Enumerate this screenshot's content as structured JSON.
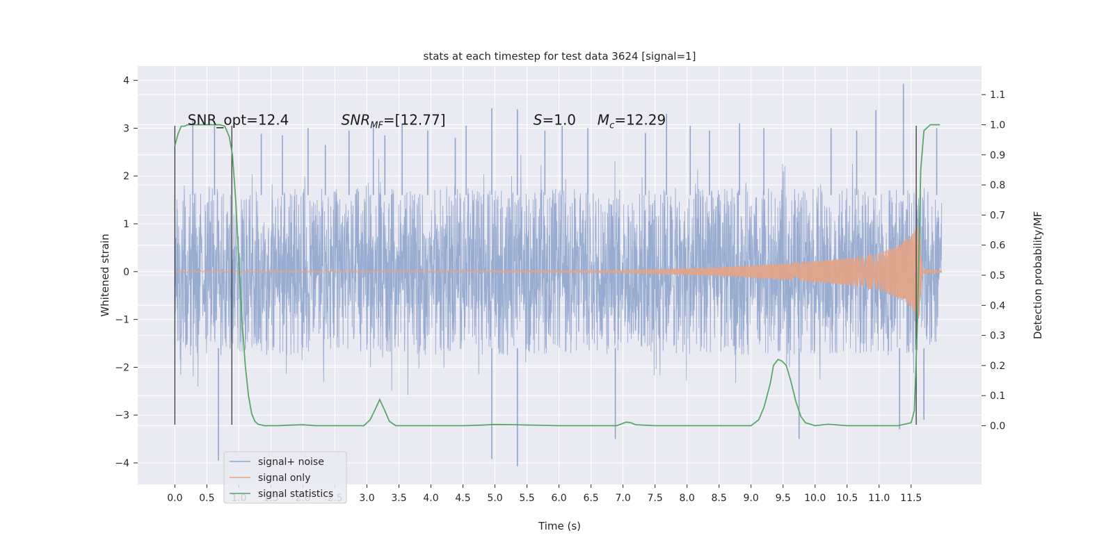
{
  "chart_data": {
    "type": "line",
    "title": "stats at each timestep for test data 3624 [signal=1]",
    "xlabel": "Time (s)",
    "ylabel_left": "Whitened strain",
    "ylabel_right": "Detection probability/MF",
    "xlim": [
      -0.58,
      12.6
    ],
    "ylim_left": [
      -4.45,
      4.3
    ],
    "ylim_right": [
      -0.195,
      1.195
    ],
    "x_ticks": [
      0.0,
      0.5,
      1.0,
      1.5,
      2.0,
      2.5,
      3.0,
      3.5,
      4.0,
      4.5,
      5.0,
      5.5,
      6.0,
      6.5,
      7.0,
      7.5,
      8.0,
      8.5,
      9.0,
      9.5,
      10.0,
      10.5,
      11.0,
      11.5
    ],
    "x_tick_labels": [
      "0.0",
      "0.5",
      "1.0",
      "1.5",
      "2.0",
      "2.5",
      "3.0",
      "3.5",
      "4.0",
      "4.5",
      "5.0",
      "5.5",
      "6.0",
      "6.5",
      "7.0",
      "7.5",
      "8.0",
      "8.5",
      "9.0",
      "9.5",
      "10.0",
      "10.5",
      "11.0",
      "11.5"
    ],
    "y_left_ticks": [
      -4,
      -3,
      -2,
      -1,
      0,
      1,
      2,
      3,
      4
    ],
    "y_left_tick_labels": [
      "−4",
      "−3",
      "−2",
      "−1",
      "0",
      "1",
      "2",
      "3",
      "4"
    ],
    "y_right_ticks": [
      0.0,
      0.1,
      0.2,
      0.3,
      0.4,
      0.5,
      0.6,
      0.7,
      0.8,
      0.9,
      1.0,
      1.1
    ],
    "y_right_tick_labels": [
      "0.0",
      "0.1",
      "0.2",
      "0.3",
      "0.4",
      "0.5",
      "0.6",
      "0.7",
      "0.8",
      "0.9",
      "1.0",
      "1.1"
    ],
    "grid": true,
    "legend_position": "lower-left",
    "annotations": {
      "snr_opt": "SNR_opt=12.4",
      "snr_mf_main": "SNR",
      "snr_mf_sub": "MF",
      "snr_mf_value": "=[12.77]",
      "s_symbol": "S",
      "s_value": "=1.0",
      "mc_symbol": "M",
      "mc_sub": "c",
      "mc_value": "=12.29"
    },
    "vertical_markers": [
      {
        "x": 0.0,
        "ymin": -3.2,
        "ymax": 3.05
      },
      {
        "x": 0.89,
        "ymin": -3.2,
        "ymax": 3.05
      },
      {
        "x": 11.58,
        "ymin": -3.2,
        "ymax": 3.05
      }
    ],
    "noise": {
      "x_start": 0.0,
      "x_end": 11.98,
      "typical_amplitude": 1.75,
      "peak_max": 3.93,
      "peak_min": -4.07
    },
    "series": [
      {
        "name": "signal+ noise",
        "axis": "left",
        "color": "#8fa4cc",
        "spikes": [
          {
            "x": 0.28,
            "y": 3.18
          },
          {
            "x": 0.62,
            "y": 3.15
          },
          {
            "x": 0.68,
            "y": -3.95
          },
          {
            "x": 1.35,
            "y": 2.88
          },
          {
            "x": 1.68,
            "y": 2.85
          },
          {
            "x": 2.08,
            "y": 3.0
          },
          {
            "x": 2.35,
            "y": 2.65
          },
          {
            "x": 2.72,
            "y": 2.95
          },
          {
            "x": 3.1,
            "y": 3.05
          },
          {
            "x": 3.28,
            "y": 2.85
          },
          {
            "x": 3.55,
            "y": 3.1
          },
          {
            "x": 3.95,
            "y": 2.95
          },
          {
            "x": 4.38,
            "y": 2.8
          },
          {
            "x": 4.55,
            "y": 3.05
          },
          {
            "x": 4.95,
            "y": 3.42
          },
          {
            "x": 4.95,
            "y": -3.92
          },
          {
            "x": 5.35,
            "y": 3.4
          },
          {
            "x": 5.35,
            "y": -4.07
          },
          {
            "x": 5.78,
            "y": 2.95
          },
          {
            "x": 6.05,
            "y": 3.05
          },
          {
            "x": 6.45,
            "y": 3.0
          },
          {
            "x": 6.88,
            "y": -3.5
          },
          {
            "x": 7.35,
            "y": 2.9
          },
          {
            "x": 7.68,
            "y": 3.3
          },
          {
            "x": 8.05,
            "y": 3.05
          },
          {
            "x": 8.35,
            "y": 2.95
          },
          {
            "x": 8.82,
            "y": 3.1
          },
          {
            "x": 9.2,
            "y": 3.0
          },
          {
            "x": 9.75,
            "y": -3.5
          },
          {
            "x": 10.25,
            "y": 3.0
          },
          {
            "x": 10.65,
            "y": 2.95
          },
          {
            "x": 10.95,
            "y": 3.38
          },
          {
            "x": 11.32,
            "y": -3.3
          },
          {
            "x": 11.38,
            "y": 3.93
          },
          {
            "x": 11.7,
            "y": -3.1
          },
          {
            "x": 11.9,
            "y": 3.0
          }
        ]
      },
      {
        "name": "signal only",
        "axis": "left",
        "color": "#e1a48a",
        "envelope": [
          {
            "x": 0.0,
            "amp": 0.015
          },
          {
            "x": 7.0,
            "amp": 0.02
          },
          {
            "x": 7.5,
            "amp": 0.04
          },
          {
            "x": 8.5,
            "amp": 0.09
          },
          {
            "x": 9.5,
            "amp": 0.17
          },
          {
            "x": 10.5,
            "amp": 0.28
          },
          {
            "x": 11.0,
            "amp": 0.4
          },
          {
            "x": 11.3,
            "amp": 0.55
          },
          {
            "x": 11.5,
            "amp": 0.75
          },
          {
            "x": 11.57,
            "amp": 0.9
          },
          {
            "x": 11.62,
            "amp": 1.0
          },
          {
            "x": 11.68,
            "amp": 0.05
          },
          {
            "x": 11.98,
            "amp": 0.02
          }
        ]
      },
      {
        "name": "signal statistics",
        "axis": "right",
        "color": "#55a868",
        "x": [
          0.0,
          0.05,
          0.1,
          0.15,
          0.2,
          0.3,
          0.5,
          0.7,
          0.78,
          0.85,
          0.9,
          0.95,
          1.0,
          1.05,
          1.1,
          1.15,
          1.2,
          1.25,
          1.3,
          1.4,
          1.6,
          1.8,
          2.0,
          2.2,
          2.6,
          2.95,
          3.05,
          3.12,
          3.2,
          3.28,
          3.35,
          3.45,
          3.6,
          4.0,
          4.5,
          4.8,
          5.0,
          5.3,
          6.0,
          6.9,
          7.0,
          7.05,
          7.12,
          7.2,
          7.5,
          8.0,
          8.5,
          9.0,
          9.12,
          9.2,
          9.3,
          9.35,
          9.42,
          9.48,
          9.55,
          9.62,
          9.7,
          9.78,
          9.85,
          10.0,
          10.2,
          10.5,
          11.0,
          11.3,
          11.5,
          11.55,
          11.6,
          11.65,
          11.7,
          11.8,
          11.95
        ],
        "values": [
          0.93,
          0.97,
          0.995,
          0.995,
          1.0,
          1.0,
          1.0,
          1.0,
          0.995,
          0.96,
          0.9,
          0.75,
          0.55,
          0.35,
          0.2,
          0.1,
          0.04,
          0.015,
          0.005,
          0.0,
          0.0,
          0.002,
          0.003,
          0.0,
          0.0,
          0.0,
          0.02,
          0.05,
          0.087,
          0.05,
          0.015,
          0.0,
          0.0,
          0.0,
          0.0,
          0.002,
          0.004,
          0.003,
          0.0,
          0.0,
          0.008,
          0.012,
          0.01,
          0.003,
          0.0,
          0.0,
          0.0,
          0.0,
          0.02,
          0.06,
          0.14,
          0.2,
          0.22,
          0.215,
          0.2,
          0.15,
          0.08,
          0.03,
          0.01,
          0.0,
          0.005,
          0.0,
          0.0,
          0.0,
          0.01,
          0.05,
          0.35,
          0.85,
          0.98,
          1.0,
          1.0
        ]
      }
    ]
  }
}
